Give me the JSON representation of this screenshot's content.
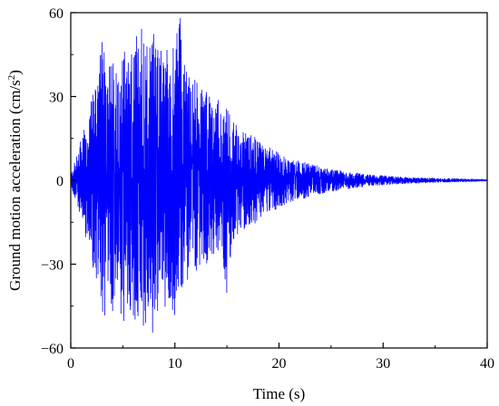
{
  "chart_data": {
    "type": "line",
    "xlabel": "Time (s)",
    "ylabel_main": "Ground motion acceleration (cm/s",
    "ylabel_sup": "2",
    "ylabel_tail": ")",
    "xlim": [
      0,
      40
    ],
    "ylim": [
      -60,
      60
    ],
    "x_ticks": [
      0,
      10,
      20,
      30,
      40
    ],
    "x_tick_labels": [
      "0",
      "10",
      "20",
      "30",
      "40"
    ],
    "y_ticks": [
      -60,
      -30,
      0,
      30,
      60
    ],
    "y_tick_labels": [
      "−60",
      "−30",
      "0",
      "30",
      "60"
    ],
    "grid": false,
    "series": [
      {
        "color": "#0000ff",
        "sample_interval_s": 0.02,
        "envelope": {
          "x": [
            0,
            0.5,
            1,
            1.5,
            2,
            2.5,
            3,
            3.5,
            4,
            4.5,
            5,
            5.5,
            6,
            6.5,
            7,
            7.5,
            8,
            8.5,
            9,
            9.5,
            10,
            10.5,
            11,
            11.5,
            12,
            12.5,
            13,
            13.5,
            14,
            14.5,
            15,
            15.5,
            16,
            16.5,
            17,
            17.5,
            18,
            18.5,
            19,
            19.5,
            20,
            21,
            22,
            23,
            24,
            25,
            26,
            27,
            28,
            29,
            30,
            31,
            32,
            33,
            34,
            35,
            36,
            37,
            38,
            39,
            40
          ],
          "upper": [
            2,
            8,
            15,
            22,
            30,
            36,
            50,
            40,
            45,
            38,
            48,
            42,
            50,
            55,
            60,
            48,
            60,
            45,
            52,
            44,
            55,
            60,
            40,
            38,
            36,
            32,
            34,
            28,
            30,
            27,
            26,
            22,
            20,
            18,
            17,
            16,
            15,
            13,
            12,
            11,
            10,
            8,
            7,
            6,
            5,
            4,
            3.5,
            3,
            2.5,
            2,
            1.8,
            1.5,
            1.3,
            1.1,
            1,
            0.9,
            0.8,
            0.7,
            0.6,
            0.5,
            0.4
          ],
          "lower": [
            -2,
            -8,
            -14,
            -22,
            -28,
            -40,
            -53,
            -45,
            -48,
            -42,
            -55,
            -46,
            -50,
            -52,
            -60,
            -45,
            -60,
            -42,
            -48,
            -44,
            -50,
            -40,
            -38,
            -35,
            -34,
            -30,
            -30,
            -28,
            -27,
            -24,
            -42,
            -22,
            -20,
            -18,
            -17,
            -16,
            -15,
            -13,
            -12,
            -11,
            -10,
            -8,
            -7,
            -6,
            -5,
            -4,
            -3.5,
            -3,
            -2.5,
            -2,
            -1.8,
            -1.5,
            -1.3,
            -1.1,
            -1,
            -0.9,
            -0.8,
            -0.7,
            -0.6,
            -0.5,
            -0.4
          ]
        }
      }
    ]
  }
}
